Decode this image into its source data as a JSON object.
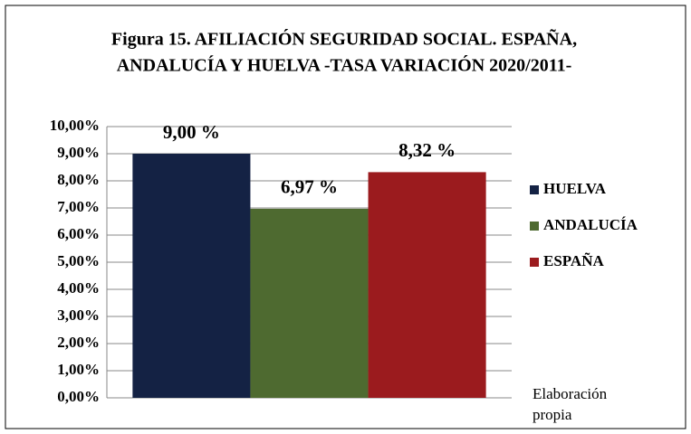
{
  "chart_data": {
    "type": "bar",
    "title": [
      "Figura 15. AFILIACIÓN SEGURIDAD SOCIAL. ESPAÑA,",
      "ANDALUCÍA Y HUELVA -TASA VARIACIÓN 2020/2011-"
    ],
    "categories": [
      null
    ],
    "series": [
      {
        "name": "HUELVA",
        "color": "#142244",
        "values": [
          9.0
        ],
        "value_labels": [
          "9,00 %"
        ]
      },
      {
        "name": "ANDALUCÍA",
        "color": "#4e6a30",
        "values": [
          6.97
        ],
        "value_labels": [
          "6,97 %"
        ]
      },
      {
        "name": "ESPAÑA",
        "color": "#9b1b1e",
        "values": [
          8.32
        ],
        "value_labels": [
          "8,32 %"
        ]
      }
    ],
    "ylim": [
      0,
      10
    ],
    "yticks": [
      {
        "value": 0,
        "label": "0,00%"
      },
      {
        "value": 1,
        "label": "1,00%"
      },
      {
        "value": 2,
        "label": "2,00%"
      },
      {
        "value": 3,
        "label": "3,00%"
      },
      {
        "value": 4,
        "label": "4,00%"
      },
      {
        "value": 5,
        "label": "5,00%"
      },
      {
        "value": 6,
        "label": "6,00%"
      },
      {
        "value": 7,
        "label": "7,00%"
      },
      {
        "value": 8,
        "label": "8,00%"
      },
      {
        "value": 9,
        "label": "9,00%"
      },
      {
        "value": 10,
        "label": "10,00%"
      }
    ],
    "grid": true,
    "legend": "right",
    "annotation": [
      "Elaboración",
      "propia"
    ]
  }
}
